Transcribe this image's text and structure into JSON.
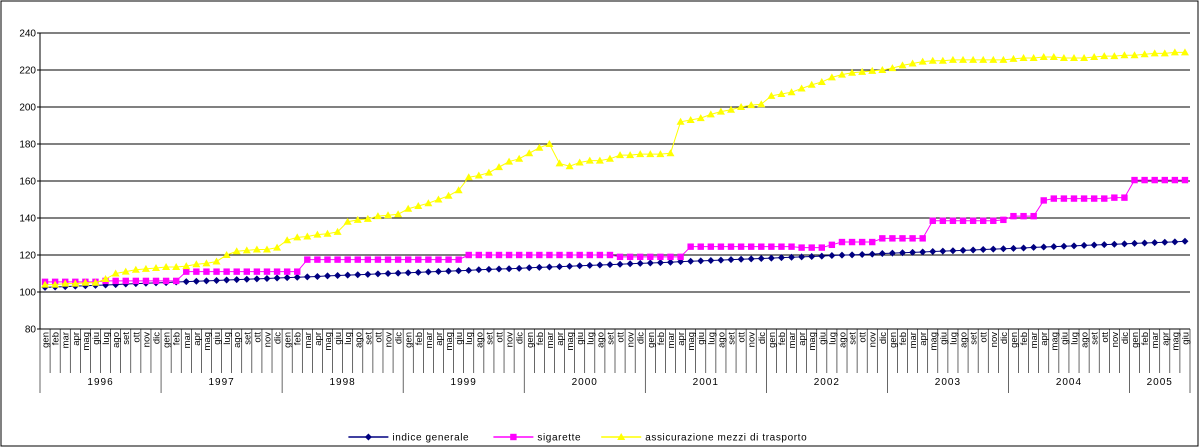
{
  "chart_data": {
    "type": "line",
    "categories": [
      "gen",
      "feb",
      "mar",
      "apr",
      "mag",
      "giu",
      "lug",
      "ago",
      "set",
      "ott",
      "nov",
      "dic",
      "gen",
      "feb",
      "mar",
      "apr",
      "mag",
      "giu",
      "lug",
      "ago",
      "set",
      "ott",
      "nov",
      "dic",
      "gen",
      "feb",
      "mar",
      "apr",
      "mag",
      "giu",
      "lug",
      "ago",
      "set",
      "ott",
      "nov",
      "dic",
      "gen",
      "feb",
      "mar",
      "apr",
      "mag",
      "giu",
      "lug",
      "ago",
      "set",
      "ott",
      "nov",
      "dic",
      "gen",
      "feb",
      "mar",
      "apr",
      "mag",
      "giu",
      "lug",
      "ago",
      "set",
      "ott",
      "nov",
      "dic",
      "gen",
      "feb",
      "mar",
      "apr",
      "mag",
      "giu",
      "lug",
      "ago",
      "set",
      "ott",
      "nov",
      "dic",
      "gen",
      "feb",
      "mar",
      "apr",
      "mag",
      "giu",
      "lug",
      "ago",
      "set",
      "ott",
      "nov",
      "dic",
      "gen",
      "feb",
      "mar",
      "apr",
      "mag",
      "giu",
      "lug",
      "ago",
      "set",
      "ott",
      "nov",
      "dic",
      "gen",
      "feb",
      "mar",
      "apr",
      "mag",
      "giu",
      "lug",
      "ago",
      "set",
      "ott",
      "nov",
      "dic",
      "gen",
      "feb",
      "mar",
      "apr",
      "mag",
      "giu"
    ],
    "years": [
      "1996",
      "1997",
      "1998",
      "1999",
      "2000",
      "2001",
      "2002",
      "2003",
      "2004",
      "2005"
    ],
    "series": [
      {
        "name": "indice generale",
        "color": "#000080",
        "marker": "diamond",
        "values": [
          102.5,
          102.7,
          102.9,
          103.2,
          103.4,
          103.6,
          103.8,
          104.0,
          104.3,
          104.5,
          104.7,
          104.9,
          105.1,
          105.4,
          105.6,
          105.8,
          106.0,
          106.2,
          106.5,
          106.7,
          106.9,
          107.1,
          107.3,
          107.6,
          107.8,
          108.0,
          108.2,
          108.4,
          108.7,
          108.9,
          109.1,
          109.3,
          109.5,
          109.8,
          110.0,
          110.2,
          110.4,
          110.6,
          110.9,
          111.1,
          111.3,
          111.5,
          111.7,
          112.0,
          112.2,
          112.4,
          112.6,
          112.8,
          113.1,
          113.3,
          113.5,
          113.7,
          113.9,
          114.2,
          114.4,
          114.6,
          114.8,
          115.0,
          115.3,
          115.5,
          115.7,
          115.9,
          116.1,
          116.4,
          116.6,
          116.8,
          117.0,
          117.2,
          117.5,
          117.7,
          117.9,
          118.1,
          118.3,
          118.6,
          118.8,
          119.0,
          119.2,
          119.4,
          119.7,
          119.9,
          120.1,
          120.3,
          120.5,
          120.8,
          121.0,
          121.2,
          121.4,
          121.6,
          121.9,
          122.1,
          122.3,
          122.5,
          122.7,
          123.0,
          123.2,
          123.4,
          123.6,
          123.8,
          124.1,
          124.3,
          124.5,
          124.7,
          124.9,
          125.2,
          125.4,
          125.6,
          125.8,
          126.0,
          126.3,
          126.5,
          126.7,
          126.9,
          127.1,
          127.4
        ]
      },
      {
        "name": "sigarette",
        "color": "#ff00ff",
        "marker": "square",
        "values": [
          105.5,
          105.5,
          105.5,
          105.5,
          105.5,
          105.5,
          106,
          106,
          106,
          106,
          106,
          106,
          106,
          106,
          111,
          111,
          111,
          111,
          111,
          111,
          111,
          111,
          111,
          111,
          111,
          111,
          117.5,
          117.5,
          117.5,
          117.5,
          117.5,
          117.5,
          117.5,
          117.5,
          117.5,
          117.5,
          117.5,
          117.5,
          117.5,
          117.5,
          117.5,
          117.5,
          120,
          120,
          120,
          120,
          120,
          120,
          120,
          120,
          120,
          120,
          120,
          120,
          120,
          120,
          120,
          119,
          119,
          119,
          119,
          119,
          119,
          119,
          124.5,
          124.5,
          124.5,
          124.5,
          124.5,
          124.5,
          124.5,
          124.5,
          124.5,
          124.5,
          124.5,
          124,
          124,
          124,
          125.5,
          127,
          127,
          127,
          127,
          129,
          129,
          129,
          129,
          129,
          138.5,
          138.5,
          138.5,
          138.5,
          138.5,
          138.5,
          138.5,
          139,
          141,
          141,
          141,
          149.5,
          150.5,
          150.5,
          150.5,
          150.5,
          150.5,
          150.5,
          151,
          151,
          160.5,
          160.5,
          160.5,
          160.5,
          160.5,
          160.5
        ]
      },
      {
        "name": "assicurazione mezzi di trasporto",
        "color": "#ffff00",
        "marker": "triangle",
        "values": [
          104,
          104,
          104.5,
          104.5,
          105,
          105,
          107,
          110,
          111,
          112,
          112.5,
          113,
          113.5,
          113.5,
          114,
          115,
          115.5,
          116.5,
          120,
          122,
          122.5,
          123,
          123,
          124,
          128,
          129.5,
          130,
          131,
          131.5,
          132.5,
          138,
          139,
          139.5,
          141,
          141.5,
          142,
          145,
          146.5,
          148,
          150,
          152,
          155,
          162,
          163,
          164.5,
          167.5,
          170.5,
          172,
          175,
          178,
          180,
          169.5,
          168,
          170,
          171,
          171,
          172,
          174,
          174,
          174.5,
          174.5,
          174.5,
          175,
          192,
          193,
          194,
          196,
          197.5,
          198.5,
          200,
          201,
          201.5,
          206,
          207,
          208,
          210,
          212,
          213.5,
          216,
          217.5,
          218.5,
          219,
          219.5,
          220,
          221,
          222.5,
          223.5,
          224.5,
          225,
          225,
          225.5,
          225.5,
          225.5,
          225.5,
          225.5,
          225.5,
          226,
          226.5,
          226.5,
          227,
          227,
          226.5,
          226.5,
          226.5,
          227,
          227.5,
          227.5,
          228,
          228,
          228.5,
          229,
          229,
          229.5,
          229.5
        ]
      }
    ],
    "ylim": [
      80,
      240
    ],
    "yticks": [
      80,
      100,
      120,
      140,
      160,
      180,
      200,
      220,
      240
    ],
    "grid": true,
    "legend": "bottom"
  }
}
